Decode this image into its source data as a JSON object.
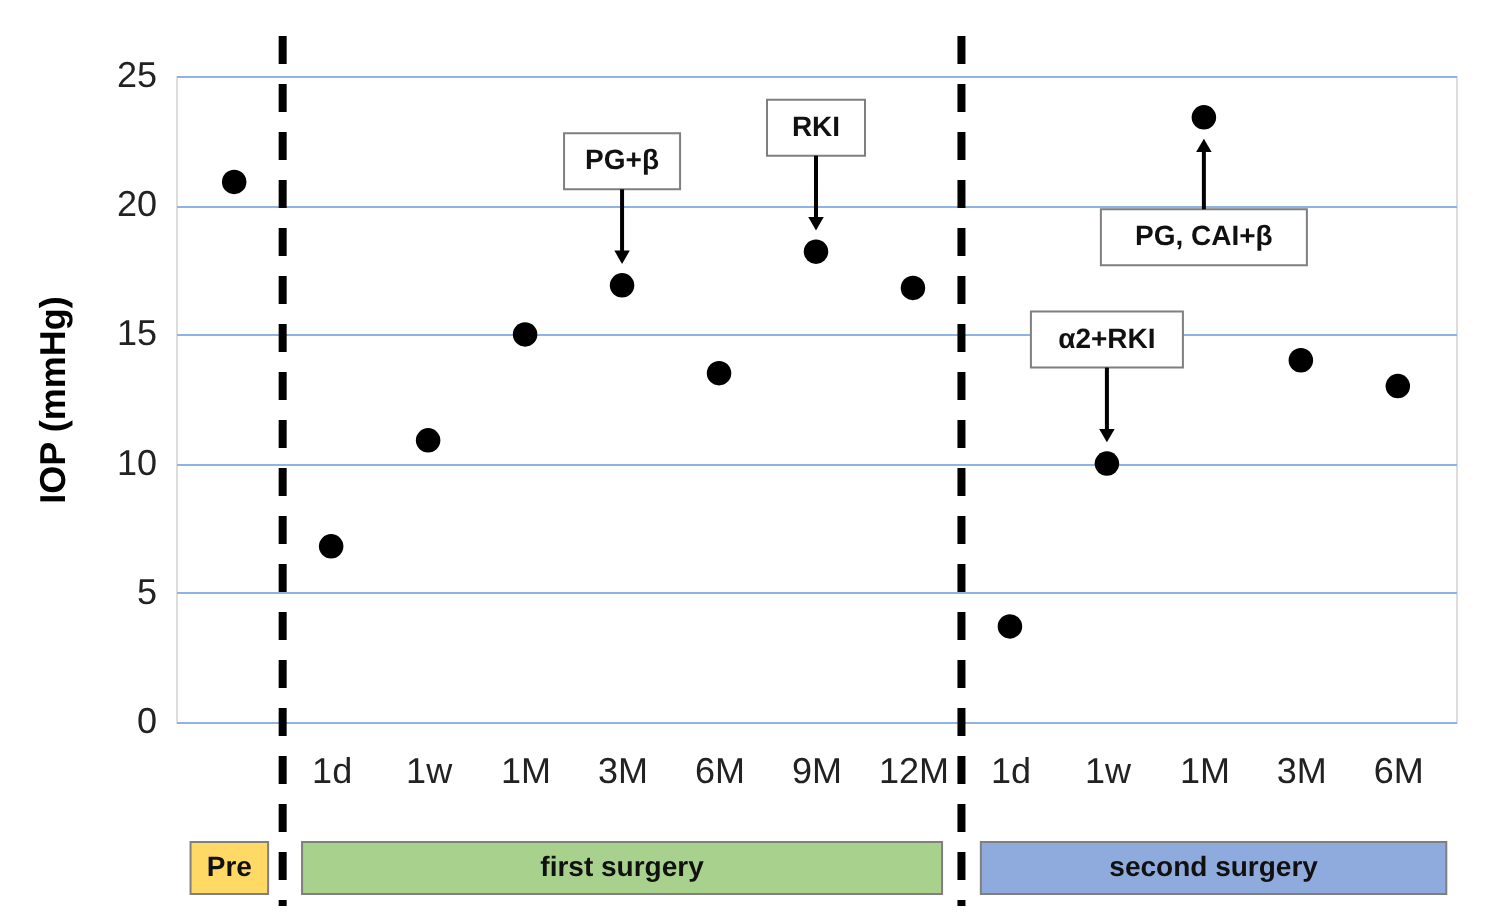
{
  "chart_data": {
    "type": "scatter",
    "ylabel": "IOP  (mmHg)",
    "categories": [
      null,
      "1d",
      "1w",
      "1M",
      "3M",
      "6M",
      "9M",
      "12M",
      "1d",
      "1w",
      "1M",
      "3M",
      "6M"
    ],
    "series": [
      {
        "color": "#000000",
        "values": [
          20.9,
          6.8,
          10.9,
          15.0,
          16.9,
          13.5,
          18.2,
          16.8,
          3.7,
          10.0,
          23.4,
          14.0,
          13.0
        ]
      }
    ],
    "ylim": [
      0,
      25
    ],
    "yticks": [
      0,
      5,
      10,
      15,
      20,
      25
    ],
    "grid": "y",
    "marker": "circle",
    "annotations": [
      "Pre",
      "first surgery",
      "second surgery",
      "PG+β",
      "RKI",
      "α2+RKI",
      "PG, CAI+β"
    ]
  }
}
